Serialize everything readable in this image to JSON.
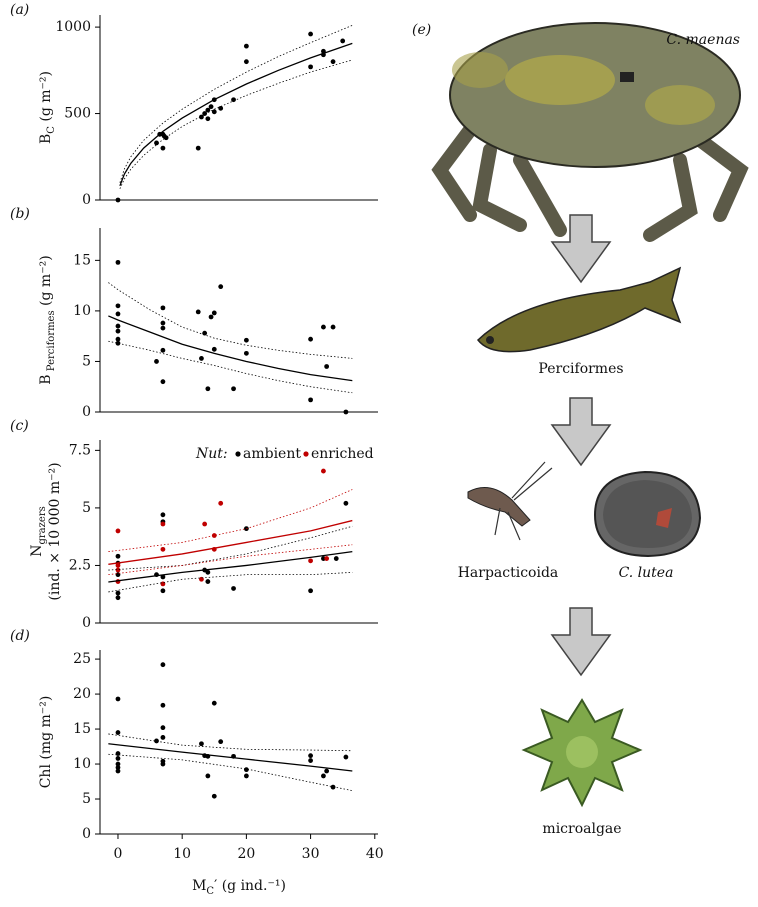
{
  "chart_data": [
    {
      "type": "scatter",
      "panel": "(a)",
      "y_label": [
        [
          "B",
          "C",
          " (g m⁻²)"
        ]
      ],
      "xlim": [
        -2.8,
        40.5
      ],
      "ylim": [
        0,
        1070
      ],
      "yticks": [
        0,
        500,
        1000
      ],
      "series": [
        {
          "style": "points",
          "color": "#000000",
          "x": [
            0,
            6,
            6.5,
            7,
            7,
            7.2,
            7.5,
            12.5,
            13,
            13.5,
            14,
            14,
            14.5,
            15,
            15,
            16,
            18,
            20,
            20,
            30,
            30,
            32,
            32,
            33.5,
            35
          ],
          "values": [
            0,
            330,
            380,
            380,
            300,
            370,
            360,
            300,
            480,
            500,
            520,
            470,
            540,
            580,
            510,
            530,
            580,
            890,
            800,
            960,
            770,
            840,
            860,
            800,
            920
          ]
        },
        {
          "style": "line",
          "color": "#000000",
          "x": [
            0.3,
            1,
            2,
            4,
            7,
            10,
            15,
            20,
            25,
            30,
            36.5
          ],
          "values": [
            82,
            150,
            212,
            300,
            397,
            474,
            581,
            671,
            750,
            822,
            906
          ]
        },
        {
          "style": "dotted",
          "color": "#000000",
          "x": [
            0.3,
            1,
            2,
            4,
            7,
            10,
            15,
            20,
            25,
            30,
            36.5
          ],
          "values": [
            100,
            180,
            250,
            345,
            445,
            525,
            640,
            740,
            830,
            910,
            1010
          ]
        },
        {
          "style": "dotted",
          "color": "#000000",
          "x": [
            0.3,
            1,
            2,
            4,
            7,
            10,
            15,
            20,
            25,
            30,
            36.5
          ],
          "values": [
            65,
            122,
            178,
            258,
            350,
            425,
            525,
            605,
            675,
            740,
            810
          ]
        }
      ]
    },
    {
      "type": "scatter",
      "panel": "(b)",
      "y_label": [
        [
          "B",
          " Perciformes",
          " (g m⁻²)"
        ]
      ],
      "xlim": [
        -2.8,
        40.5
      ],
      "ylim": [
        0,
        18.2
      ],
      "yticks": [
        0,
        5,
        10,
        15
      ],
      "series": [
        {
          "style": "points",
          "color": "#000000",
          "x": [
            0,
            0,
            0,
            0,
            0,
            0,
            0,
            6,
            7,
            7,
            7,
            7,
            7,
            12.5,
            13,
            13.5,
            14,
            14.5,
            15,
            15,
            16,
            18,
            20,
            20,
            30,
            30,
            32,
            32.5,
            33.5,
            35.5
          ],
          "values": [
            14.8,
            10.5,
            9.7,
            8.5,
            8,
            7.2,
            6.8,
            5,
            10.3,
            8.8,
            8.3,
            6.1,
            3,
            9.9,
            5.3,
            7.8,
            2.3,
            9.4,
            6.2,
            9.8,
            12.4,
            2.3,
            7.1,
            5.8,
            7.2,
            1.2,
            8.4,
            4.5,
            8.4,
            0
          ]
        },
        {
          "style": "line",
          "color": "#000000",
          "x": [
            -1.5,
            0,
            5,
            10,
            15,
            20,
            25,
            30,
            36.5
          ],
          "values": [
            9.5,
            9.1,
            7.9,
            6.7,
            5.8,
            5.0,
            4.3,
            3.7,
            3.1
          ]
        },
        {
          "style": "dotted",
          "color": "#000000",
          "x": [
            -1.5,
            0,
            5,
            10,
            15,
            20,
            25,
            30,
            36.5
          ],
          "values": [
            12.8,
            12.1,
            10.1,
            8.4,
            7.3,
            6.6,
            6.1,
            5.7,
            5.3
          ]
        },
        {
          "style": "dotted",
          "color": "#000000",
          "x": [
            -1.5,
            0,
            5,
            10,
            15,
            20,
            25,
            30,
            36.5
          ],
          "values": [
            7.0,
            6.8,
            6.1,
            5.3,
            4.6,
            3.8,
            3.1,
            2.5,
            1.9
          ]
        }
      ]
    },
    {
      "type": "scatter",
      "panel": "(c)",
      "y_label": [
        [
          "N",
          "grazers"
        ],
        [
          "(ind. × 10 000 m⁻²)"
        ]
      ],
      "xlim": [
        -2.8,
        40.5
      ],
      "ylim": [
        0,
        7.95
      ],
      "yticks": [
        0,
        2.5,
        5,
        7.5
      ],
      "legend_title": "Nut:",
      "legend": "top-right",
      "series": [
        {
          "name": "ambient",
          "style": "points",
          "color": "#000000",
          "x": [
            0,
            0,
            0,
            0,
            0,
            6,
            7,
            7,
            7,
            7,
            13.5,
            14,
            14,
            18,
            20,
            30,
            32,
            34,
            35.5
          ],
          "values": [
            2.9,
            2.6,
            2.1,
            1.3,
            1.1,
            2.1,
            2.0,
            1.4,
            4.7,
            4.4,
            2.3,
            2.2,
            1.8,
            1.5,
            4.1,
            1.4,
            2.8,
            2.8,
            5.2
          ]
        },
        {
          "name": "enriched",
          "style": "points",
          "color": "#c00000",
          "x": [
            0,
            0,
            0,
            0,
            7,
            7,
            7,
            13,
            13.5,
            15,
            15,
            16,
            30,
            32,
            32.5
          ],
          "values": [
            4.0,
            2.5,
            2.3,
            1.8,
            3.2,
            4.3,
            1.7,
            1.9,
            4.3,
            3.8,
            3.2,
            5.2,
            2.7,
            6.6,
            2.8
          ]
        },
        {
          "style": "line",
          "color": "#000000",
          "x": [
            -1.5,
            10,
            20,
            30,
            36.5
          ],
          "values": [
            1.78,
            2.2,
            2.5,
            2.85,
            3.1
          ]
        },
        {
          "style": "dotted",
          "color": "#000000",
          "x": [
            -1.5,
            10,
            20,
            30,
            36.5
          ],
          "values": [
            2.3,
            2.5,
            3.0,
            3.7,
            4.2
          ]
        },
        {
          "style": "dotted",
          "color": "#000000",
          "x": [
            -1.5,
            10,
            20,
            30,
            36.5
          ],
          "values": [
            1.35,
            1.9,
            2.1,
            2.1,
            2.2
          ]
        },
        {
          "style": "line",
          "color": "#c00000",
          "x": [
            -1.5,
            10,
            20,
            30,
            36.5
          ],
          "values": [
            2.55,
            3.0,
            3.5,
            4.0,
            4.45
          ]
        },
        {
          "style": "dotted",
          "color": "#c00000",
          "x": [
            -1.5,
            10,
            20,
            30,
            36.5
          ],
          "values": [
            3.1,
            3.5,
            4.1,
            5.0,
            5.8
          ]
        },
        {
          "style": "dotted",
          "color": "#c00000",
          "x": [
            -1.5,
            10,
            20,
            30,
            36.5
          ],
          "values": [
            2.1,
            2.5,
            2.9,
            3.2,
            3.4
          ]
        }
      ]
    },
    {
      "type": "scatter",
      "panel": "(d)",
      "y_label": [
        [
          "Chl",
          "",
          " (mg m⁻²)"
        ]
      ],
      "x_label": [
        "M",
        "C",
        "′ (g ind.⁻¹)"
      ],
      "xlim": [
        -2.8,
        40.5
      ],
      "ylim": [
        0,
        26.3
      ],
      "yticks": [
        0,
        5,
        10,
        15,
        20,
        25
      ],
      "xticks": [
        0,
        10,
        20,
        30,
        40
      ],
      "series": [
        {
          "style": "points",
          "color": "#000000",
          "x": [
            0,
            0,
            0,
            0,
            0,
            0,
            0,
            6,
            7,
            7,
            7,
            7,
            7,
            7,
            13,
            13.5,
            14,
            14,
            15,
            15,
            16,
            18,
            20,
            20,
            30,
            30,
            32,
            32.5,
            33.5,
            35.5
          ],
          "values": [
            19.3,
            14.5,
            11.5,
            10.8,
            10,
            9.5,
            9,
            13.3,
            24.2,
            18.4,
            15.2,
            13.8,
            10.4,
            10,
            12.9,
            11.2,
            11.1,
            8.3,
            18.7,
            5.4,
            13.2,
            11.1,
            9.2,
            8.3,
            11.2,
            10.5,
            8.3,
            9,
            6.7,
            11
          ]
        },
        {
          "style": "line",
          "color": "#000000",
          "x": [
            -1.5,
            10,
            20,
            30,
            36.5
          ],
          "values": [
            12.9,
            11.7,
            10.7,
            9.7,
            9.0
          ]
        },
        {
          "style": "dotted",
          "color": "#000000",
          "x": [
            -1.5,
            10,
            20,
            30,
            36.5
          ],
          "values": [
            14.3,
            12.7,
            12.1,
            12.0,
            11.9
          ]
        },
        {
          "style": "dotted",
          "color": "#000000",
          "x": [
            -1.5,
            10,
            20,
            30,
            36.5
          ],
          "values": [
            11.4,
            10.6,
            9.3,
            7.4,
            6.2
          ]
        }
      ]
    }
  ],
  "food_web": {
    "panel": "(e)",
    "nodes": [
      "C. maenas",
      "Perciformes",
      "Harpacticoida",
      "C. lutea",
      "microalgae"
    ]
  }
}
